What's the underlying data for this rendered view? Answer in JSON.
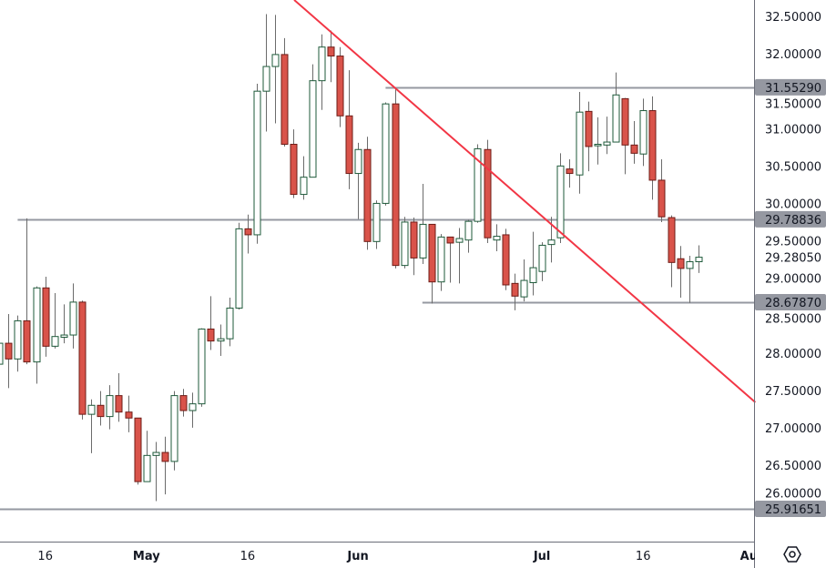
{
  "chart_data": {
    "type": "candlestick",
    "title": "",
    "xlabel": "",
    "ylabel": "",
    "ylim": [
      25.72,
      32.72
    ],
    "grid": false,
    "y_ticks": [
      "32.50000",
      "32.00000",
      "31.50000",
      "31.00000",
      "30.50000",
      "30.00000",
      "29.50000",
      "29.00000",
      "28.50000",
      "28.00000",
      "27.50000",
      "27.00000",
      "26.50000",
      "26.00000"
    ],
    "x_ticks": [
      {
        "label": "16",
        "bar": 5,
        "month": false
      },
      {
        "label": "May",
        "bar": 16,
        "month": true
      },
      {
        "label": "16",
        "bar": 27,
        "month": false
      },
      {
        "label": "Jun",
        "bar": 39,
        "month": true
      },
      {
        "label": "Jul",
        "bar": 59,
        "month": true
      },
      {
        "label": "16",
        "bar": 70,
        "month": false
      },
      {
        "label": "Au",
        "bar": 81.5,
        "month": true
      }
    ],
    "candle_format": [
      "open",
      "high",
      "low",
      "close"
    ],
    "candles": [
      [
        27.85,
        28.3,
        27.7,
        28.13
      ],
      [
        28.13,
        28.52,
        27.53,
        27.92
      ],
      [
        27.92,
        28.5,
        27.75,
        28.43
      ],
      [
        28.43,
        29.8,
        27.85,
        27.88
      ],
      [
        27.88,
        28.89,
        27.59,
        28.87
      ],
      [
        28.87,
        29.02,
        27.95,
        28.09
      ],
      [
        28.09,
        28.8,
        28.06,
        28.22
      ],
      [
        28.21,
        28.65,
        28.13,
        28.24
      ],
      [
        28.24,
        28.93,
        28.06,
        28.68
      ],
      [
        28.68,
        28.7,
        27.11,
        27.18
      ],
      [
        27.18,
        27.38,
        26.66,
        27.3
      ],
      [
        27.3,
        27.49,
        27.03,
        27.15
      ],
      [
        27.15,
        27.57,
        26.98,
        27.43
      ],
      [
        27.43,
        27.73,
        27.08,
        27.21
      ],
      [
        27.21,
        27.43,
        26.94,
        27.13
      ],
      [
        27.13,
        27.13,
        26.24,
        26.28
      ],
      [
        26.28,
        26.96,
        26.28,
        26.63
      ],
      [
        26.63,
        26.81,
        26.02,
        26.67
      ],
      [
        26.67,
        26.88,
        26.11,
        26.55
      ],
      [
        26.55,
        27.49,
        26.43,
        27.43
      ],
      [
        27.43,
        27.52,
        27.15,
        27.23
      ],
      [
        27.23,
        27.47,
        27.0,
        27.32
      ],
      [
        27.32,
        28.33,
        27.28,
        28.32
      ],
      [
        28.32,
        28.76,
        28.04,
        28.16
      ],
      [
        28.16,
        28.38,
        27.96,
        28.19
      ],
      [
        28.19,
        28.74,
        28.09,
        28.6
      ],
      [
        28.6,
        29.74,
        28.58,
        29.66
      ],
      [
        29.66,
        29.85,
        29.33,
        29.58
      ],
      [
        29.58,
        31.6,
        29.46,
        31.5
      ],
      [
        31.5,
        32.53,
        30.96,
        31.83
      ],
      [
        31.83,
        32.52,
        31.07,
        31.99
      ],
      [
        31.99,
        32.21,
        30.76,
        30.79
      ],
      [
        30.79,
        30.99,
        30.07,
        30.12
      ],
      [
        30.12,
        30.63,
        30.05,
        30.35
      ],
      [
        30.35,
        31.86,
        30.35,
        31.64
      ],
      [
        31.64,
        32.26,
        31.25,
        32.09
      ],
      [
        32.09,
        32.31,
        31.62,
        31.97
      ],
      [
        31.97,
        32.09,
        31.02,
        31.17
      ],
      [
        31.17,
        31.78,
        30.19,
        30.4
      ],
      [
        30.4,
        30.81,
        29.79,
        30.72
      ],
      [
        30.72,
        30.89,
        29.38,
        29.49
      ],
      [
        29.49,
        30.04,
        29.39,
        30.0
      ],
      [
        30.0,
        31.35,
        29.97,
        31.33
      ],
      [
        31.33,
        31.55,
        29.13,
        29.17
      ],
      [
        29.17,
        29.82,
        29.13,
        29.75
      ],
      [
        29.75,
        29.81,
        29.04,
        29.27
      ],
      [
        29.27,
        30.26,
        29.19,
        29.72
      ],
      [
        29.72,
        29.72,
        28.66,
        28.95
      ],
      [
        28.95,
        29.59,
        28.83,
        29.55
      ],
      [
        29.55,
        29.55,
        28.94,
        29.47
      ],
      [
        29.48,
        29.67,
        28.93,
        29.53
      ],
      [
        29.51,
        29.78,
        29.34,
        29.76
      ],
      [
        29.76,
        30.79,
        29.74,
        30.73
      ],
      [
        30.72,
        30.85,
        29.47,
        29.54
      ],
      [
        29.51,
        29.72,
        29.36,
        29.56
      ],
      [
        29.58,
        29.66,
        28.84,
        28.91
      ],
      [
        28.93,
        29.06,
        28.57,
        28.76
      ],
      [
        28.75,
        29.25,
        28.69,
        28.97
      ],
      [
        28.94,
        29.62,
        28.77,
        29.14
      ],
      [
        29.09,
        29.48,
        28.96,
        29.44
      ],
      [
        29.45,
        29.82,
        29.21,
        29.51
      ],
      [
        29.54,
        30.67,
        29.47,
        30.5
      ],
      [
        30.46,
        30.59,
        30.21,
        30.4
      ],
      [
        30.38,
        31.49,
        30.13,
        31.22
      ],
      [
        31.23,
        31.36,
        30.43,
        30.76
      ],
      [
        30.77,
        31.15,
        30.52,
        30.79
      ],
      [
        30.78,
        31.16,
        30.66,
        30.82
      ],
      [
        30.82,
        31.75,
        30.82,
        31.45
      ],
      [
        31.4,
        31.41,
        30.39,
        30.78
      ],
      [
        30.78,
        31.1,
        30.53,
        30.67
      ],
      [
        30.66,
        31.4,
        30.5,
        31.24
      ],
      [
        31.24,
        31.43,
        30.05,
        30.31
      ],
      [
        30.31,
        30.59,
        29.75,
        29.82
      ],
      [
        29.81,
        29.84,
        28.88,
        29.21
      ],
      [
        29.26,
        29.43,
        28.74,
        29.13
      ],
      [
        29.13,
        29.3,
        28.67,
        29.22
      ],
      [
        29.22,
        29.44,
        29.07,
        29.28
      ]
    ],
    "horizontal_levels": [
      {
        "price": 31.5529,
        "label": "31.55290",
        "from_bar": 42
      },
      {
        "price": 29.78836,
        "label": "29.78836",
        "from_bar": 2
      },
      {
        "price": 28.6787,
        "label": "28.67870",
        "from_bar": 46
      },
      {
        "price": 25.91651,
        "label": "25.91651",
        "from_bar": 0
      }
    ],
    "trendline": {
      "points": [
        {
          "bar": 32.06,
          "price": 32.72
        },
        {
          "bar": 82.2,
          "price": 27.34
        }
      ],
      "color": "#f23645"
    },
    "last_price": {
      "price": 29.2805,
      "label": "29.28050"
    },
    "colors": {
      "up_border": "#1e5a3a",
      "up_fill": "#ffffff",
      "down_fill": "#d9534a",
      "down_border": "#6e1c17",
      "wick": "#6b6b6b",
      "level_line": "#9598a1",
      "badge": "#9598a1"
    }
  },
  "toolbar": {
    "settings_icon": "hexagon-settings-icon"
  }
}
